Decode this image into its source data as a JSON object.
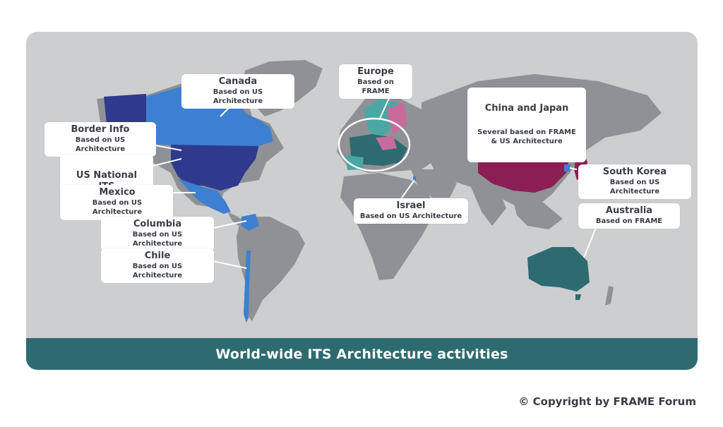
{
  "footer": {
    "title": "World-wide ITS Architecture activities"
  },
  "copyright": "© Copyright by FRAME Forum",
  "colors": {
    "background": "#ccced0",
    "land": "#8f9194",
    "us_national": "#2f3a8f",
    "us_based": "#3d7fd0",
    "frame_based": "#2d6b70",
    "frame_light": "#4aa7a4",
    "frame_pink": "#c86a9b",
    "several_frame": "#8b1f55",
    "band": "#2d6b70"
  },
  "legend_regions": [
    {
      "name": "Canada",
      "subtitle": "Based on US Architecture"
    },
    {
      "name": "Border Info",
      "subtitle": "Based on US Architecture"
    },
    {
      "name": "US National\nITS Architecture",
      "subtitle": ""
    },
    {
      "name": "Mexico",
      "subtitle": "Based on US Architecture"
    },
    {
      "name": "Columbia",
      "subtitle": "Based on US Architecture"
    },
    {
      "name": "Chile",
      "subtitle": "Based on US Architecture"
    },
    {
      "name": "Europe",
      "subtitle": "Based on FRAME"
    },
    {
      "name": "Israel",
      "subtitle": "Based on US Architecture"
    },
    {
      "name": "China and Japan",
      "subtitle": "Several based on FRAME\n& US Architecture"
    },
    {
      "name": "South Korea",
      "subtitle": "Based on US Architecture"
    },
    {
      "name": "Australia",
      "subtitle": "Based on FRAME"
    }
  ]
}
